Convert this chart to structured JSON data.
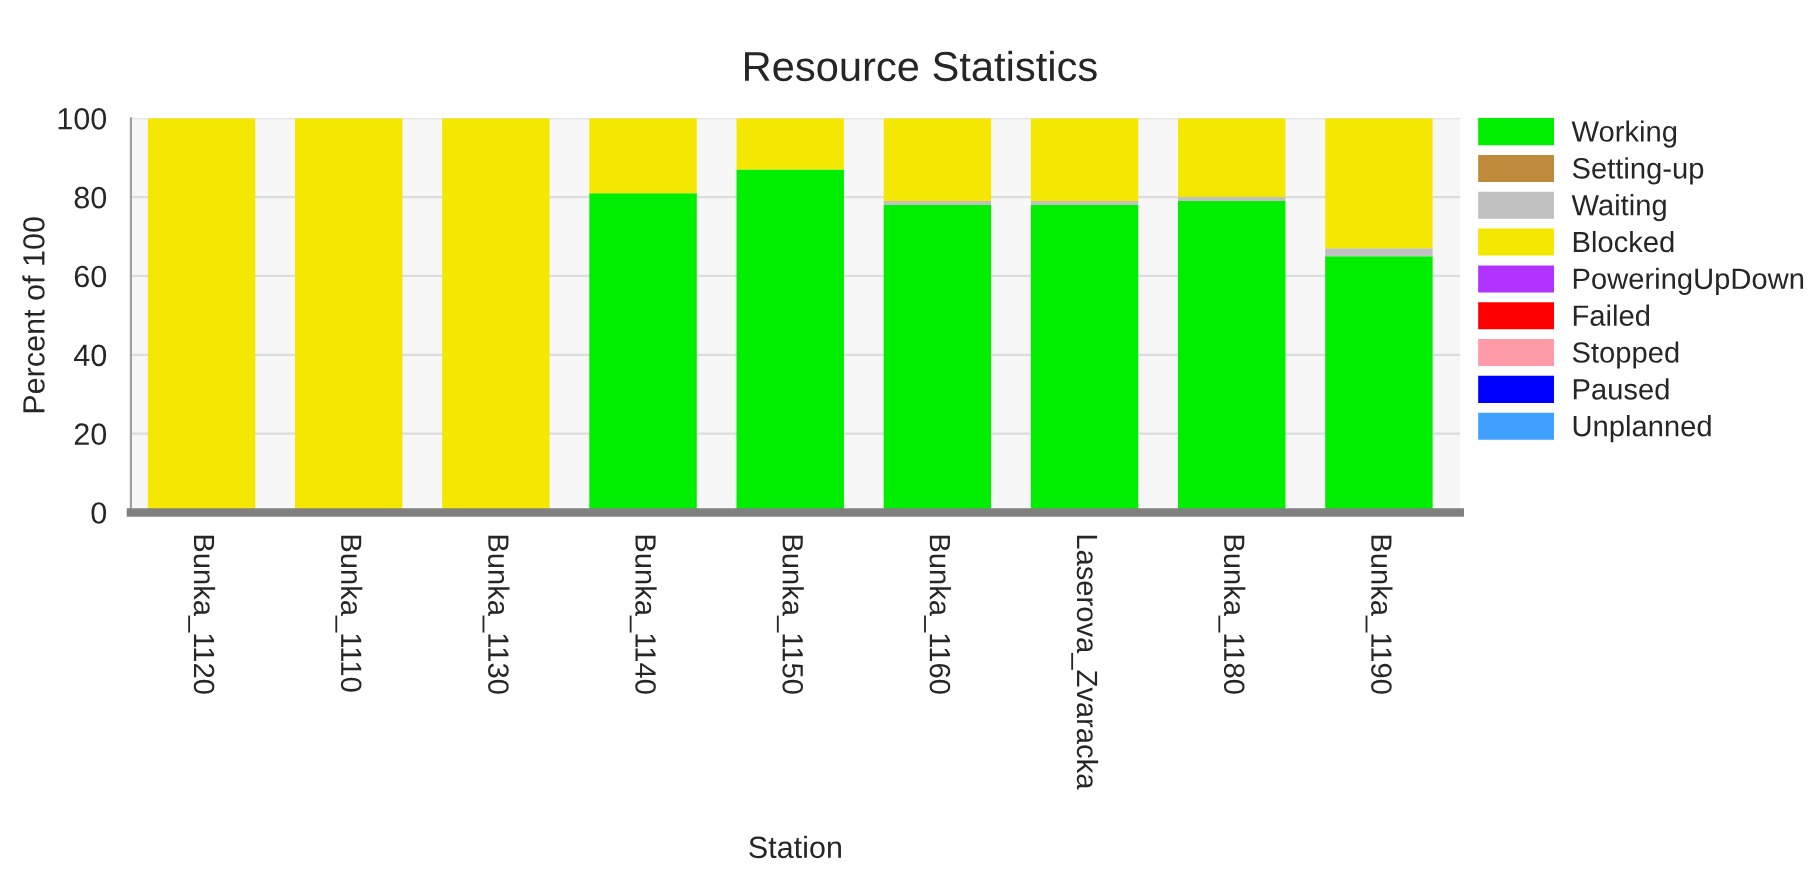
{
  "chart_data": {
    "type": "bar",
    "title": "Resource Statistics",
    "xlabel": "Station",
    "ylabel": "Percent of 100",
    "categories": [
      "Bunka_1120",
      "Bunka_1110",
      "Bunka_1130",
      "Bunka_1140",
      "Bunka_1150",
      "Bunka_1160",
      "Laserova_Zvaracka",
      "Bunka_1180",
      "Bunka_1190"
    ],
    "stacked": true,
    "ylim": [
      0,
      100
    ],
    "yticks": [
      0,
      20,
      40,
      60,
      80,
      100
    ],
    "grid": "y",
    "legend": "right",
    "series": [
      {
        "name": "Working",
        "color": "#00ee00",
        "values": [
          0,
          0,
          0,
          81,
          87,
          78,
          78,
          79,
          65
        ]
      },
      {
        "name": "Setting-up",
        "color": "#c08a3c",
        "values": [
          0,
          0,
          0,
          0,
          0,
          0,
          0,
          0,
          0
        ]
      },
      {
        "name": "Waiting",
        "color": "#c0c0c0",
        "values": [
          0,
          0,
          0,
          0,
          0,
          1,
          1,
          1,
          2
        ]
      },
      {
        "name": "Blocked",
        "color": "#f5e800",
        "values": [
          100,
          100,
          100,
          19,
          13,
          21,
          21,
          20,
          33
        ]
      },
      {
        "name": "PoweringUpDown",
        "color": "#b233ff",
        "values": [
          0,
          0,
          0,
          0,
          0,
          0,
          0,
          0,
          0
        ]
      },
      {
        "name": "Failed",
        "color": "#ff0000",
        "values": [
          0,
          0,
          0,
          0,
          0,
          0,
          0,
          0,
          0
        ]
      },
      {
        "name": "Stopped",
        "color": "#ff9aa8",
        "values": [
          0,
          0,
          0,
          0,
          0,
          0,
          0,
          0,
          0
        ]
      },
      {
        "name": "Paused",
        "color": "#0000ff",
        "values": [
          0,
          0,
          0,
          0,
          0,
          0,
          0,
          0,
          0
        ]
      },
      {
        "name": "Unplanned",
        "color": "#40a0ff",
        "values": [
          0,
          0,
          0,
          0,
          0,
          0,
          0,
          0,
          0
        ]
      }
    ]
  }
}
